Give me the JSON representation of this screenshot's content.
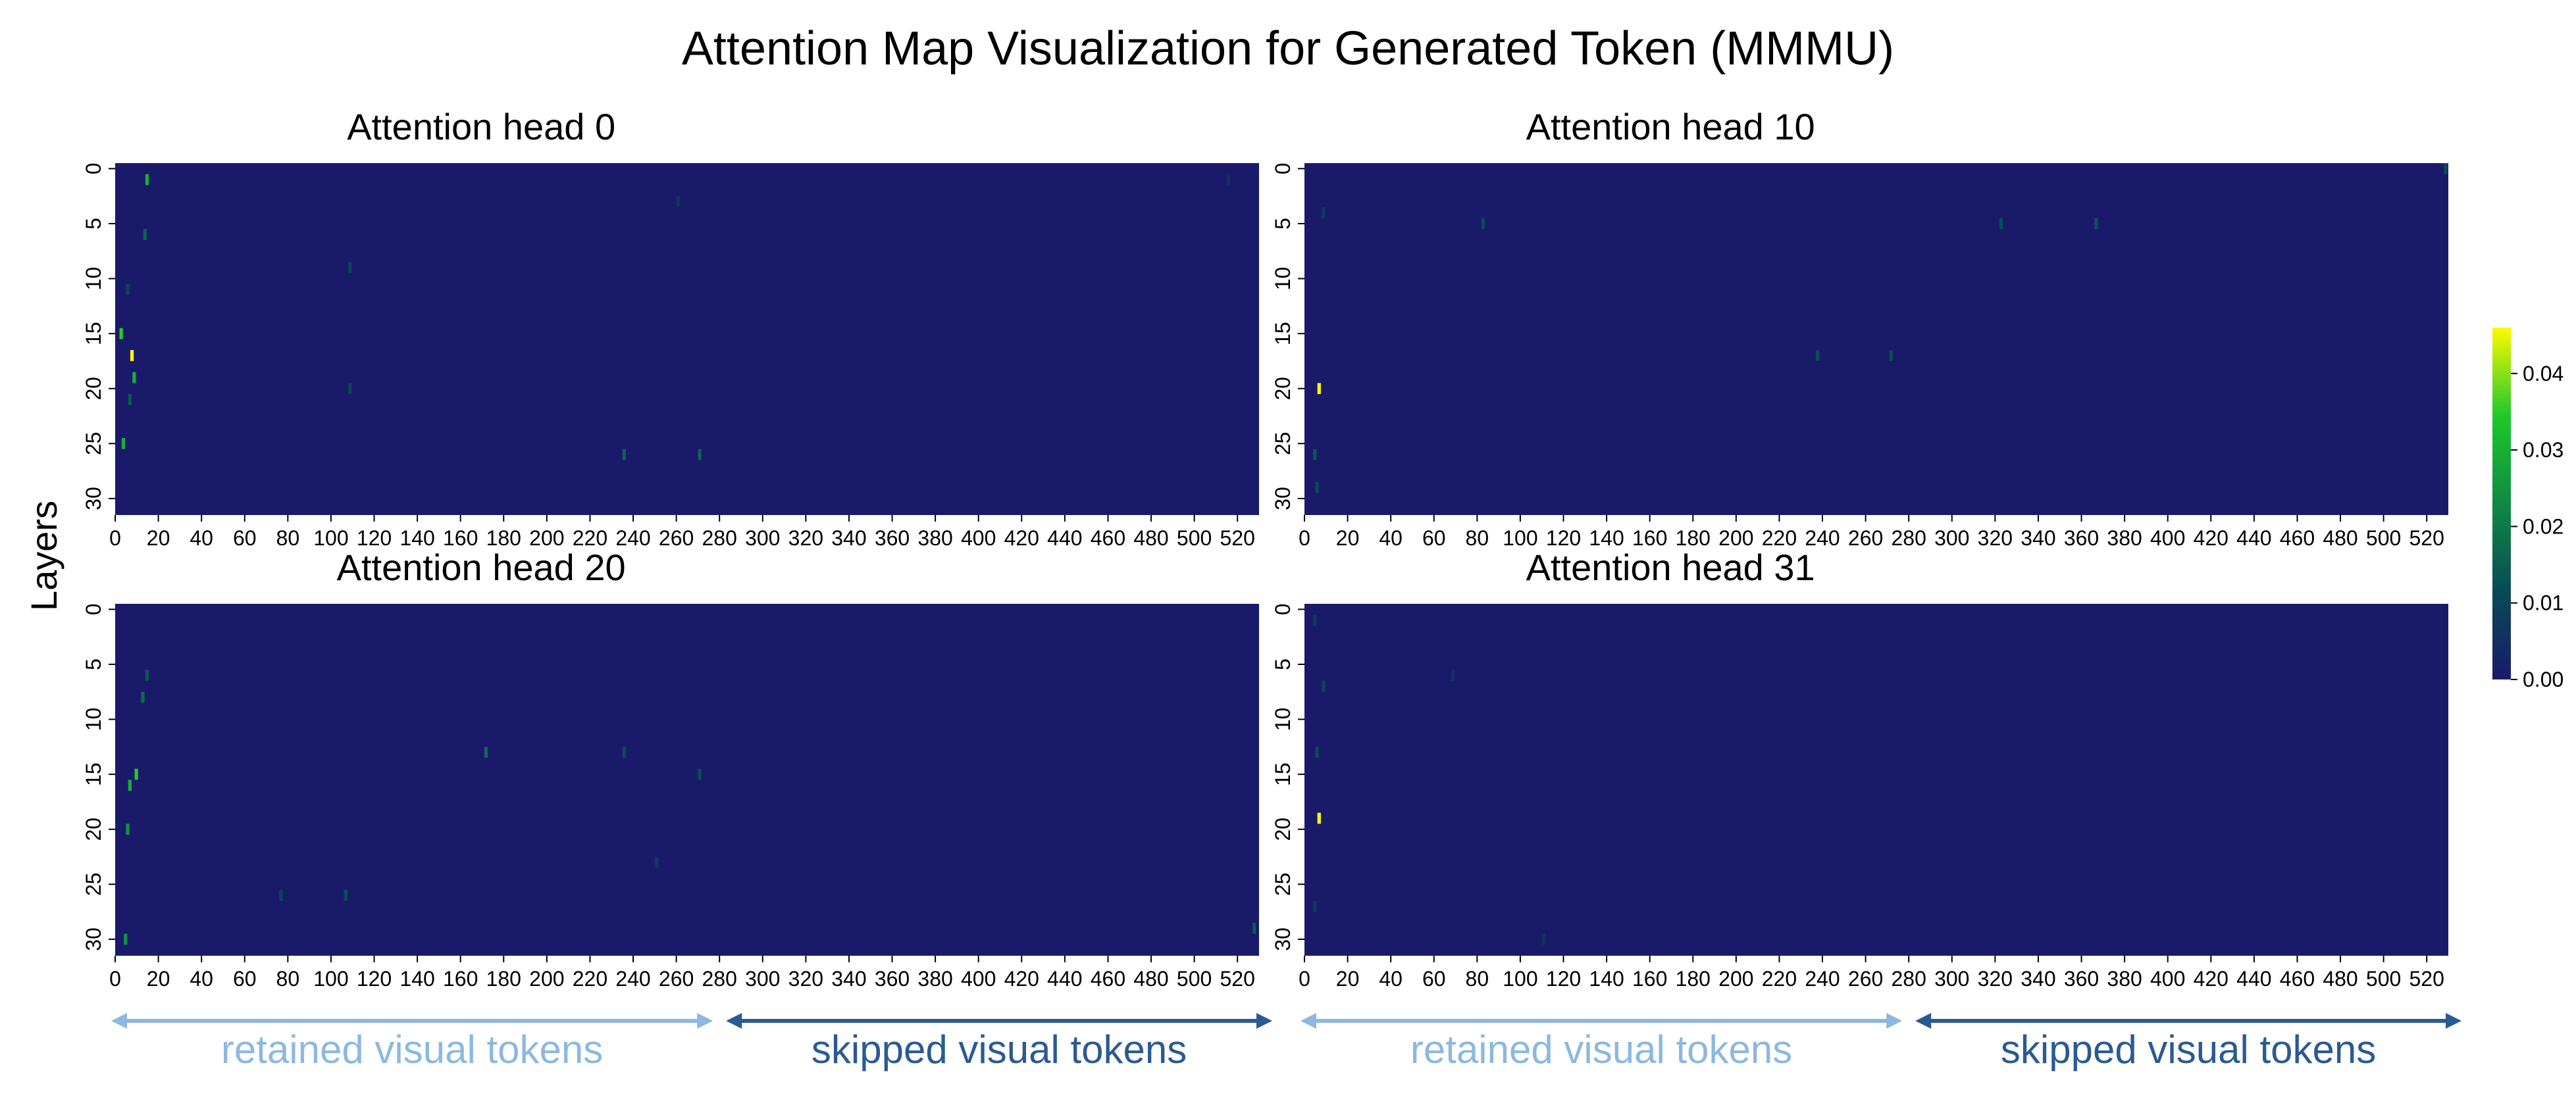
{
  "title": "Attention Map Visualization for Generated Token (MMMU)",
  "ylabel": "Layers",
  "colors": {
    "cmap": [
      "#1a1a6b",
      "#0a4a56",
      "#0e8a44",
      "#1ec92a",
      "#fffb00"
    ],
    "axis": "#000000",
    "retained": "#8db8df",
    "skipped": "#2a5a92"
  },
  "colorbar": {
    "min": 0.0,
    "max": 0.046,
    "ticks": [
      0.0,
      0.01,
      0.02,
      0.03,
      0.04
    ]
  },
  "annotations": {
    "retained": {
      "text": "retained visual tokens",
      "from": 0,
      "to": 280
    },
    "skipped": {
      "text": "skipped visual tokens",
      "from": 280,
      "to": 530
    }
  },
  "chart_data": [
    {
      "type": "heatmap",
      "title": "Attention head 0",
      "xlabel": "",
      "ylabel": "Layers",
      "x_range": [
        0,
        530
      ],
      "y_range": [
        0,
        32
      ],
      "xticks": [
        0,
        20,
        40,
        60,
        80,
        100,
        120,
        140,
        160,
        180,
        200,
        220,
        240,
        260,
        280,
        300,
        320,
        340,
        360,
        380,
        400,
        420,
        440,
        460,
        480,
        500,
        520
      ],
      "yticks": [
        0,
        5,
        10,
        15,
        20,
        25,
        30
      ],
      "hotspots": [
        {
          "x": 14,
          "y": 1,
          "v": 0.03
        },
        {
          "x": 13,
          "y": 6,
          "v": 0.016
        },
        {
          "x": 5,
          "y": 11,
          "v": 0.01
        },
        {
          "x": 2,
          "y": 15,
          "v": 0.035
        },
        {
          "x": 7,
          "y": 17,
          "v": 0.046
        },
        {
          "x": 8,
          "y": 19,
          "v": 0.03
        },
        {
          "x": 6,
          "y": 21,
          "v": 0.014
        },
        {
          "x": 3,
          "y": 25,
          "v": 0.03
        },
        {
          "x": 108,
          "y": 9,
          "v": 0.01
        },
        {
          "x": 108,
          "y": 20,
          "v": 0.01
        },
        {
          "x": 235,
          "y": 26,
          "v": 0.016
        },
        {
          "x": 270,
          "y": 26,
          "v": 0.016
        },
        {
          "x": 260,
          "y": 3,
          "v": 0.006
        },
        {
          "x": 515,
          "y": 1,
          "v": 0.006
        }
      ]
    },
    {
      "type": "heatmap",
      "title": "Attention head 10",
      "xlabel": "",
      "ylabel": "Layers",
      "x_range": [
        0,
        530
      ],
      "y_range": [
        0,
        32
      ],
      "xticks": [
        0,
        20,
        40,
        60,
        80,
        100,
        120,
        140,
        160,
        180,
        200,
        220,
        240,
        260,
        280,
        300,
        320,
        340,
        360,
        380,
        400,
        420,
        440,
        460,
        480,
        500,
        520
      ],
      "yticks": [
        0,
        5,
        10,
        15,
        20,
        25,
        30
      ],
      "hotspots": [
        {
          "x": 6,
          "y": 20,
          "v": 0.046
        },
        {
          "x": 4,
          "y": 26,
          "v": 0.014
        },
        {
          "x": 5,
          "y": 29,
          "v": 0.012
        },
        {
          "x": 8,
          "y": 4,
          "v": 0.008
        },
        {
          "x": 82,
          "y": 5,
          "v": 0.012
        },
        {
          "x": 322,
          "y": 5,
          "v": 0.012
        },
        {
          "x": 366,
          "y": 5,
          "v": 0.014
        },
        {
          "x": 237,
          "y": 17,
          "v": 0.012
        },
        {
          "x": 271,
          "y": 17,
          "v": 0.012
        },
        {
          "x": 528,
          "y": 0,
          "v": 0.012
        }
      ]
    },
    {
      "type": "heatmap",
      "title": "Attention head 20",
      "xlabel": "",
      "ylabel": "Layers",
      "x_range": [
        0,
        530
      ],
      "y_range": [
        0,
        32
      ],
      "xticks": [
        0,
        20,
        40,
        60,
        80,
        100,
        120,
        140,
        160,
        180,
        200,
        220,
        240,
        260,
        280,
        300,
        320,
        340,
        360,
        380,
        400,
        420,
        440,
        460,
        480,
        500,
        520
      ],
      "yticks": [
        0,
        5,
        10,
        15,
        20,
        25,
        30
      ],
      "hotspots": [
        {
          "x": 9,
          "y": 15,
          "v": 0.035
        },
        {
          "x": 6,
          "y": 16,
          "v": 0.03
        },
        {
          "x": 5,
          "y": 20,
          "v": 0.025
        },
        {
          "x": 4,
          "y": 30,
          "v": 0.025
        },
        {
          "x": 12,
          "y": 8,
          "v": 0.018
        },
        {
          "x": 14,
          "y": 6,
          "v": 0.014
        },
        {
          "x": 171,
          "y": 13,
          "v": 0.018
        },
        {
          "x": 235,
          "y": 13,
          "v": 0.012
        },
        {
          "x": 106,
          "y": 26,
          "v": 0.012
        },
        {
          "x": 76,
          "y": 26,
          "v": 0.01
        },
        {
          "x": 270,
          "y": 15,
          "v": 0.012
        },
        {
          "x": 527,
          "y": 29,
          "v": 0.014
        },
        {
          "x": 250,
          "y": 23,
          "v": 0.008
        }
      ]
    },
    {
      "type": "heatmap",
      "title": "Attention head 31",
      "xlabel": "",
      "ylabel": "Layers",
      "x_range": [
        0,
        530
      ],
      "y_range": [
        0,
        32
      ],
      "xticks": [
        0,
        20,
        40,
        60,
        80,
        100,
        120,
        140,
        160,
        180,
        200,
        220,
        240,
        260,
        280,
        300,
        320,
        340,
        360,
        380,
        400,
        420,
        440,
        460,
        480,
        500,
        520
      ],
      "yticks": [
        0,
        5,
        10,
        15,
        20,
        25,
        30
      ],
      "hotspots": [
        {
          "x": 6,
          "y": 19,
          "v": 0.046
        },
        {
          "x": 5,
          "y": 13,
          "v": 0.012
        },
        {
          "x": 8,
          "y": 7,
          "v": 0.01
        },
        {
          "x": 4,
          "y": 1,
          "v": 0.008
        },
        {
          "x": 4,
          "y": 27,
          "v": 0.008
        },
        {
          "x": 68,
          "y": 6,
          "v": 0.006
        },
        {
          "x": 110,
          "y": 30,
          "v": 0.006
        }
      ]
    }
  ]
}
